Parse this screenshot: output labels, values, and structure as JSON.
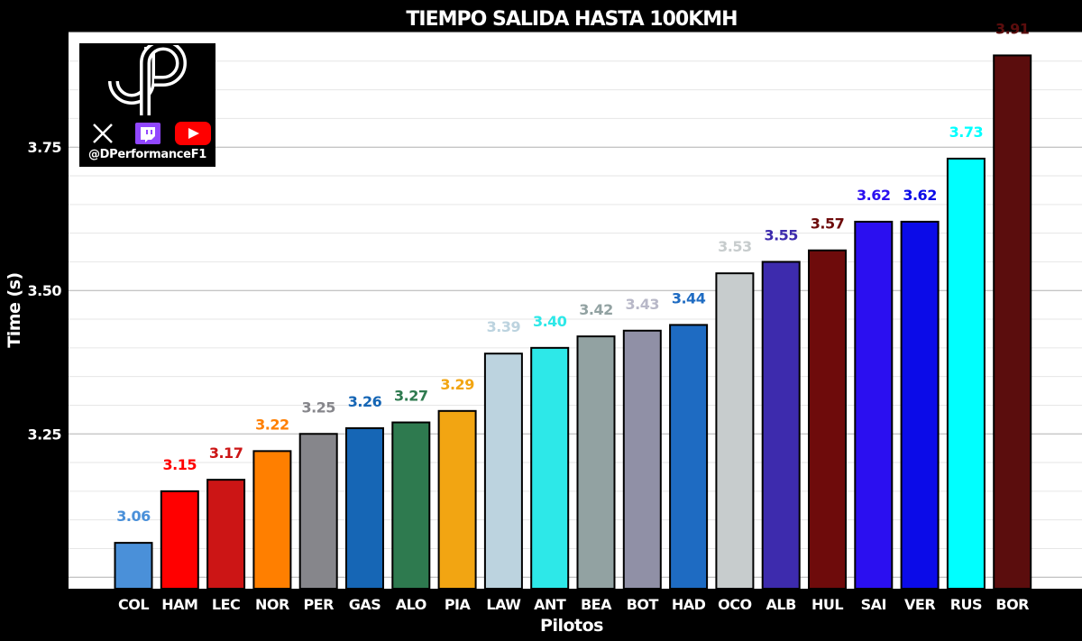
{
  "chart_data": {
    "type": "bar",
    "title": "TIEMPO SALIDA HASTA 100KMH",
    "xlabel": "Pilotos",
    "ylabel": "Time (s)",
    "ylim": [
      2.98,
      3.95
    ],
    "yticks": [
      "3.25",
      "3.50",
      "3.75"
    ],
    "grid": true,
    "categories": [
      "COL",
      "HAM",
      "LEC",
      "NOR",
      "PER",
      "GAS",
      "ALO",
      "PIA",
      "LAW",
      "ANT",
      "BEA",
      "BOT",
      "HAD",
      "OCO",
      "ALB",
      "HUL",
      "SAI",
      "VER",
      "RUS",
      "BOR"
    ],
    "values": [
      3.06,
      3.15,
      3.17,
      3.22,
      3.25,
      3.26,
      3.27,
      3.29,
      3.39,
      3.4,
      3.42,
      3.43,
      3.44,
      3.53,
      3.55,
      3.57,
      3.62,
      3.62,
      3.73,
      3.91
    ],
    "value_labels": [
      "3.06",
      "3.15",
      "3.17",
      "3.22",
      "3.25",
      "3.26",
      "3.27",
      "3.29",
      "3.39",
      "3.40",
      "3.42",
      "3.43",
      "3.44",
      "3.53",
      "3.55",
      "3.57",
      "3.62",
      "3.62",
      "3.73",
      "3.91"
    ],
    "bar_colors": [
      "#4a90d9",
      "#ff0000",
      "#cc1515",
      "#ff7f00",
      "#86868b",
      "#1666b5",
      "#2e7a4f",
      "#f2a512",
      "#bcd3df",
      "#2de8e8",
      "#92a2a2",
      "#9090a6",
      "#1e6bc2",
      "#c7cccd",
      "#3d2bad",
      "#6e0b0b",
      "#2b0ff0",
      "#0b0be8",
      "#00ffff",
      "#5b0d0d"
    ],
    "label_colors": [
      "#4a90d9",
      "#ff0000",
      "#cc1515",
      "#ff7f00",
      "#86868b",
      "#1666b5",
      "#2e7a4f",
      "#f2a512",
      "#bcd3df",
      "#2de8e8",
      "#92a2a2",
      "#b8b8c8",
      "#1e6bc2",
      "#c7cccd",
      "#3d2bad",
      "#6e0b0b",
      "#2b0ff0",
      "#0b0be8",
      "#00ffff",
      "#5b0d0d"
    ]
  },
  "logo": {
    "handle": "@DPerformanceF1",
    "icons": [
      "x-icon",
      "twitch-icon",
      "youtube-icon"
    ]
  }
}
